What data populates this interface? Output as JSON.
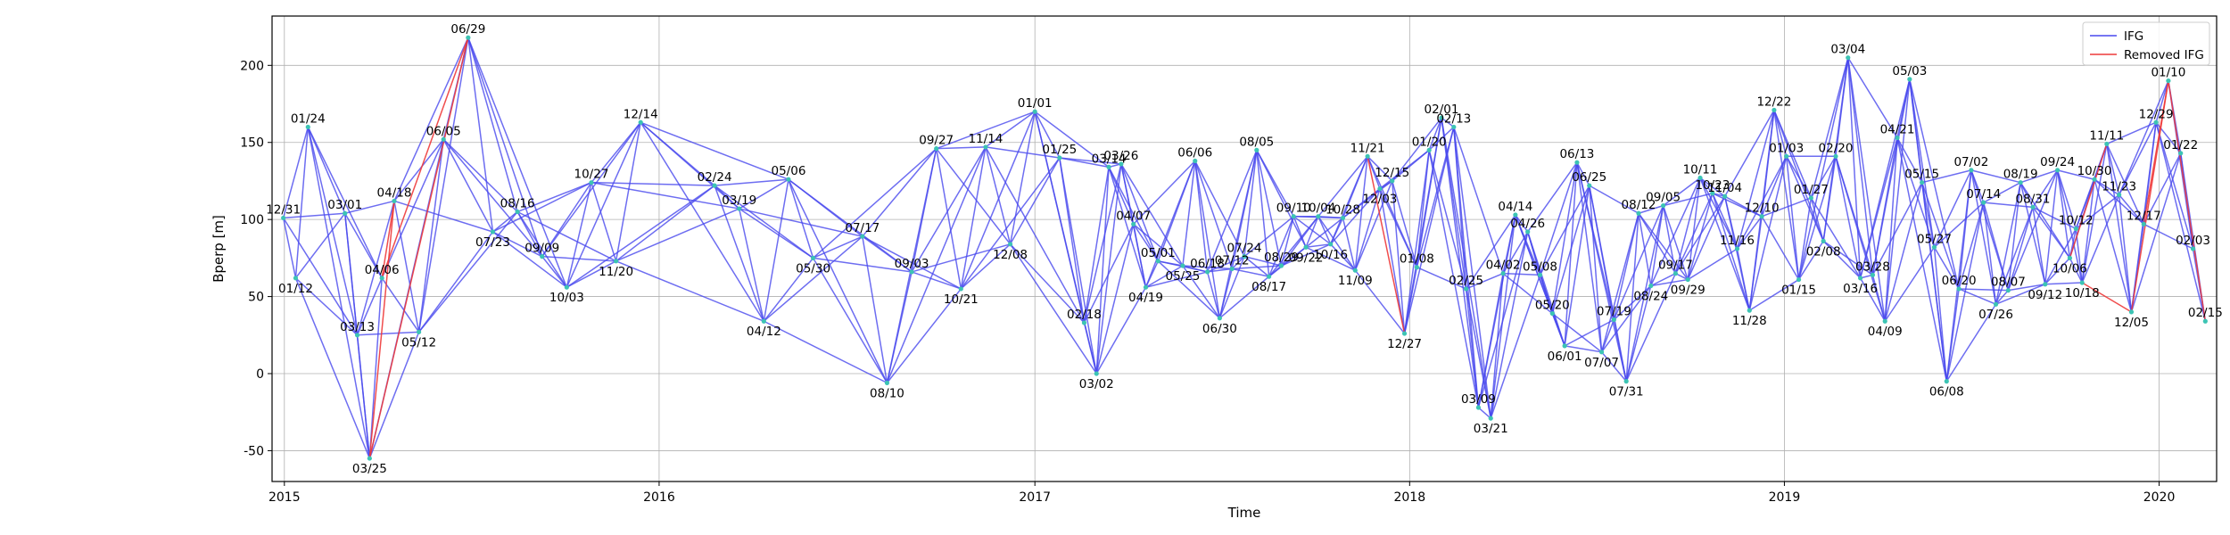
{
  "chart_data": {
    "type": "line",
    "title": "",
    "xlabel": "Time",
    "ylabel": "Bperp [m]",
    "xlim": [
      "2014-12-20",
      "2020-02-26"
    ],
    "ylim": [
      -70,
      232
    ],
    "x_ticks": [
      {
        "date": "2015-01-01",
        "label": "2015"
      },
      {
        "date": "2016-01-01",
        "label": "2016"
      },
      {
        "date": "2017-01-01",
        "label": "2017"
      },
      {
        "date": "2018-01-01",
        "label": "2018"
      },
      {
        "date": "2019-01-01",
        "label": "2019"
      },
      {
        "date": "2020-01-01",
        "label": "2020"
      }
    ],
    "y_ticks": [
      -50,
      0,
      50,
      100,
      150,
      200
    ],
    "grid": true,
    "legend": {
      "placement": "top-right",
      "entries": [
        {
          "label": "IFG",
          "color": "#4848ee"
        },
        {
          "label": "Removed IFG",
          "color": "#ee3a3a"
        }
      ]
    },
    "colors": {
      "ifg": "#4848ee",
      "removed": "#ee3a3a",
      "point": "#3cc4b4"
    },
    "points": [
      {
        "label": "12/31",
        "date": "2014-12-31",
        "bperp": 101
      },
      {
        "label": "01/12",
        "date": "2015-01-12",
        "bperp": 62
      },
      {
        "label": "01/24",
        "date": "2015-01-24",
        "bperp": 160
      },
      {
        "label": "03/01",
        "date": "2015-03-01",
        "bperp": 104
      },
      {
        "label": "03/13",
        "date": "2015-03-13",
        "bperp": 25
      },
      {
        "label": "03/25",
        "date": "2015-03-25",
        "bperp": -55
      },
      {
        "label": "04/06",
        "date": "2015-04-06",
        "bperp": 62
      },
      {
        "label": "04/18",
        "date": "2015-04-18",
        "bperp": 112
      },
      {
        "label": "05/12",
        "date": "2015-05-12",
        "bperp": 27
      },
      {
        "label": "06/05",
        "date": "2015-06-05",
        "bperp": 152
      },
      {
        "label": "06/29",
        "date": "2015-06-29",
        "bperp": 218
      },
      {
        "label": "07/23",
        "date": "2015-07-23",
        "bperp": 92
      },
      {
        "label": "08/16",
        "date": "2015-08-16",
        "bperp": 105
      },
      {
        "label": "09/09",
        "date": "2015-09-09",
        "bperp": 76
      },
      {
        "label": "10/03",
        "date": "2015-10-03",
        "bperp": 56
      },
      {
        "label": "10/27",
        "date": "2015-10-27",
        "bperp": 124
      },
      {
        "label": "11/20",
        "date": "2015-11-20",
        "bperp": 73
      },
      {
        "label": "12/14",
        "date": "2015-12-14",
        "bperp": 163
      },
      {
        "label": "02/24",
        "date": "2016-02-24",
        "bperp": 122
      },
      {
        "label": "03/19",
        "date": "2016-03-19",
        "bperp": 107
      },
      {
        "label": "04/12",
        "date": "2016-04-12",
        "bperp": 34
      },
      {
        "label": "05/06",
        "date": "2016-05-06",
        "bperp": 126
      },
      {
        "label": "05/30",
        "date": "2016-05-30",
        "bperp": 75
      },
      {
        "label": "07/17",
        "date": "2016-07-17",
        "bperp": 89
      },
      {
        "label": "08/10",
        "date": "2016-08-10",
        "bperp": -6
      },
      {
        "label": "09/03",
        "date": "2016-09-03",
        "bperp": 66
      },
      {
        "label": "09/27",
        "date": "2016-09-27",
        "bperp": 146
      },
      {
        "label": "10/21",
        "date": "2016-10-21",
        "bperp": 55
      },
      {
        "label": "11/14",
        "date": "2016-11-14",
        "bperp": 147
      },
      {
        "label": "12/08",
        "date": "2016-12-08",
        "bperp": 84
      },
      {
        "label": "01/01",
        "date": "2017-01-01",
        "bperp": 170
      },
      {
        "label": "01/25",
        "date": "2017-01-25",
        "bperp": 140
      },
      {
        "label": "02/18",
        "date": "2017-02-18",
        "bperp": 33
      },
      {
        "label": "03/02",
        "date": "2017-03-02",
        "bperp": 0
      },
      {
        "label": "03/14",
        "date": "2017-03-14",
        "bperp": 134
      },
      {
        "label": "03/26",
        "date": "2017-03-26",
        "bperp": 136
      },
      {
        "label": "04/07",
        "date": "2017-04-07",
        "bperp": 97
      },
      {
        "label": "04/19",
        "date": "2017-04-19",
        "bperp": 56
      },
      {
        "label": "05/01",
        "date": "2017-05-01",
        "bperp": 73
      },
      {
        "label": "05/25",
        "date": "2017-05-25",
        "bperp": 70
      },
      {
        "label": "06/06",
        "date": "2017-06-06",
        "bperp": 138
      },
      {
        "label": "06/18",
        "date": "2017-06-18",
        "bperp": 66
      },
      {
        "label": "06/30",
        "date": "2017-06-30",
        "bperp": 36
      },
      {
        "label": "07/12",
        "date": "2017-07-12",
        "bperp": 68
      },
      {
        "label": "07/24",
        "date": "2017-07-24",
        "bperp": 76
      },
      {
        "label": "08/05",
        "date": "2017-08-05",
        "bperp": 145
      },
      {
        "label": "08/17",
        "date": "2017-08-17",
        "bperp": 63
      },
      {
        "label": "08/29",
        "date": "2017-08-29",
        "bperp": 70
      },
      {
        "label": "09/10",
        "date": "2017-09-10",
        "bperp": 102
      },
      {
        "label": "09/22",
        "date": "2017-09-22",
        "bperp": 82
      },
      {
        "label": "10/04",
        "date": "2017-10-04",
        "bperp": 102
      },
      {
        "label": "10/16",
        "date": "2017-10-16",
        "bperp": 84
      },
      {
        "label": "10/28",
        "date": "2017-10-28",
        "bperp": 101
      },
      {
        "label": "11/09",
        "date": "2017-11-09",
        "bperp": 67
      },
      {
        "label": "11/21",
        "date": "2017-11-21",
        "bperp": 141
      },
      {
        "label": "12/03",
        "date": "2017-12-03",
        "bperp": 120
      },
      {
        "label": "12/15",
        "date": "2017-12-15",
        "bperp": 125
      },
      {
        "label": "12/27",
        "date": "2017-12-27",
        "bperp": 26
      },
      {
        "label": "01/08",
        "date": "2018-01-08",
        "bperp": 69
      },
      {
        "label": "01/20",
        "date": "2018-01-20",
        "bperp": 145
      },
      {
        "label": "02/01",
        "date": "2018-02-01",
        "bperp": 166
      },
      {
        "label": "02/13",
        "date": "2018-02-13",
        "bperp": 160
      },
      {
        "label": "02/25",
        "date": "2018-02-25",
        "bperp": 55
      },
      {
        "label": "03/09",
        "date": "2018-03-09",
        "bperp": -22
      },
      {
        "label": "03/21",
        "date": "2018-03-21",
        "bperp": -29
      },
      {
        "label": "04/02",
        "date": "2018-04-02",
        "bperp": 65
      },
      {
        "label": "04/14",
        "date": "2018-04-14",
        "bperp": 103
      },
      {
        "label": "04/26",
        "date": "2018-04-26",
        "bperp": 92
      },
      {
        "label": "05/08",
        "date": "2018-05-08",
        "bperp": 64
      },
      {
        "label": "05/20",
        "date": "2018-05-20",
        "bperp": 39
      },
      {
        "label": "06/01",
        "date": "2018-06-01",
        "bperp": 18
      },
      {
        "label": "06/13",
        "date": "2018-06-13",
        "bperp": 137
      },
      {
        "label": "06/25",
        "date": "2018-06-25",
        "bperp": 122
      },
      {
        "label": "07/07",
        "date": "2018-07-07",
        "bperp": 14
      },
      {
        "label": "07/19",
        "date": "2018-07-19",
        "bperp": 35
      },
      {
        "label": "07/31",
        "date": "2018-07-31",
        "bperp": -5
      },
      {
        "label": "08/12",
        "date": "2018-08-12",
        "bperp": 104
      },
      {
        "label": "08/24",
        "date": "2018-08-24",
        "bperp": 57
      },
      {
        "label": "09/05",
        "date": "2018-09-05",
        "bperp": 109
      },
      {
        "label": "09/17",
        "date": "2018-09-17",
        "bperp": 65
      },
      {
        "label": "09/29",
        "date": "2018-09-29",
        "bperp": 61
      },
      {
        "label": "10/11",
        "date": "2018-10-11",
        "bperp": 127
      },
      {
        "label": "10/23",
        "date": "2018-10-23",
        "bperp": 117
      },
      {
        "label": "11/04",
        "date": "2018-11-04",
        "bperp": 115
      },
      {
        "label": "11/16",
        "date": "2018-11-16",
        "bperp": 81
      },
      {
        "label": "11/28",
        "date": "2018-11-28",
        "bperp": 41
      },
      {
        "label": "12/10",
        "date": "2018-12-10",
        "bperp": 102
      },
      {
        "label": "12/22",
        "date": "2018-12-22",
        "bperp": 171
      },
      {
        "label": "01/03",
        "date": "2019-01-03",
        "bperp": 141
      },
      {
        "label": "01/15",
        "date": "2019-01-15",
        "bperp": 61
      },
      {
        "label": "01/27",
        "date": "2019-01-27",
        "bperp": 114
      },
      {
        "label": "02/08",
        "date": "2019-02-08",
        "bperp": 86
      },
      {
        "label": "02/20",
        "date": "2019-02-20",
        "bperp": 141
      },
      {
        "label": "03/04",
        "date": "2019-03-04",
        "bperp": 205
      },
      {
        "label": "03/16",
        "date": "2019-03-16",
        "bperp": 62
      },
      {
        "label": "03/28",
        "date": "2019-03-28",
        "bperp": 64
      },
      {
        "label": "04/09",
        "date": "2019-04-09",
        "bperp": 34
      },
      {
        "label": "04/21",
        "date": "2019-04-21",
        "bperp": 153
      },
      {
        "label": "05/03",
        "date": "2019-05-03",
        "bperp": 191
      },
      {
        "label": "05/15",
        "date": "2019-05-15",
        "bperp": 124
      },
      {
        "label": "05/27",
        "date": "2019-05-27",
        "bperp": 82
      },
      {
        "label": "06/08",
        "date": "2019-06-08",
        "bperp": -5
      },
      {
        "label": "06/20",
        "date": "2019-06-20",
        "bperp": 55
      },
      {
        "label": "07/02",
        "date": "2019-07-02",
        "bperp": 132
      },
      {
        "label": "07/14",
        "date": "2019-07-14",
        "bperp": 111
      },
      {
        "label": "07/26",
        "date": "2019-07-26",
        "bperp": 45
      },
      {
        "label": "08/07",
        "date": "2019-08-07",
        "bperp": 54
      },
      {
        "label": "08/19",
        "date": "2019-08-19",
        "bperp": 124
      },
      {
        "label": "08/31",
        "date": "2019-08-31",
        "bperp": 108
      },
      {
        "label": "09/12",
        "date": "2019-09-12",
        "bperp": 58
      },
      {
        "label": "09/24",
        "date": "2019-09-24",
        "bperp": 132
      },
      {
        "label": "10/06",
        "date": "2019-10-06",
        "bperp": 75
      },
      {
        "label": "10/12",
        "date": "2019-10-12",
        "bperp": 94
      },
      {
        "label": "10/18",
        "date": "2019-10-18",
        "bperp": 59
      },
      {
        "label": "10/30",
        "date": "2019-10-30",
        "bperp": 126
      },
      {
        "label": "11/11",
        "date": "2019-11-11",
        "bperp": 149
      },
      {
        "label": "11/23",
        "date": "2019-11-23",
        "bperp": 116
      },
      {
        "label": "12/05",
        "date": "2019-12-05",
        "bperp": 40
      },
      {
        "label": "12/17",
        "date": "2019-12-17",
        "bperp": 97
      },
      {
        "label": "12/29",
        "date": "2019-12-29",
        "bperp": 163
      },
      {
        "label": "01/10",
        "date": "2020-01-10",
        "bperp": 190
      },
      {
        "label": "01/22",
        "date": "2020-01-22",
        "bperp": 143
      },
      {
        "label": "02/03",
        "date": "2020-02-03",
        "bperp": 81
      },
      {
        "label": "02/15",
        "date": "2020-02-15",
        "bperp": 34
      }
    ],
    "removed_ifgs": [
      [
        "03/25",
        "06/29"
      ],
      [
        "03/25",
        "04/18"
      ],
      [
        "04/06",
        "04/18"
      ],
      [
        "04/06",
        "06/29"
      ],
      [
        "11/21",
        "12/27"
      ],
      [
        "10/06",
        "11/11"
      ],
      [
        "10/18",
        "12/05"
      ],
      [
        "12/05",
        "01/10"
      ],
      [
        "12/17",
        "01/10"
      ],
      [
        "01/10",
        "02/15"
      ]
    ]
  }
}
